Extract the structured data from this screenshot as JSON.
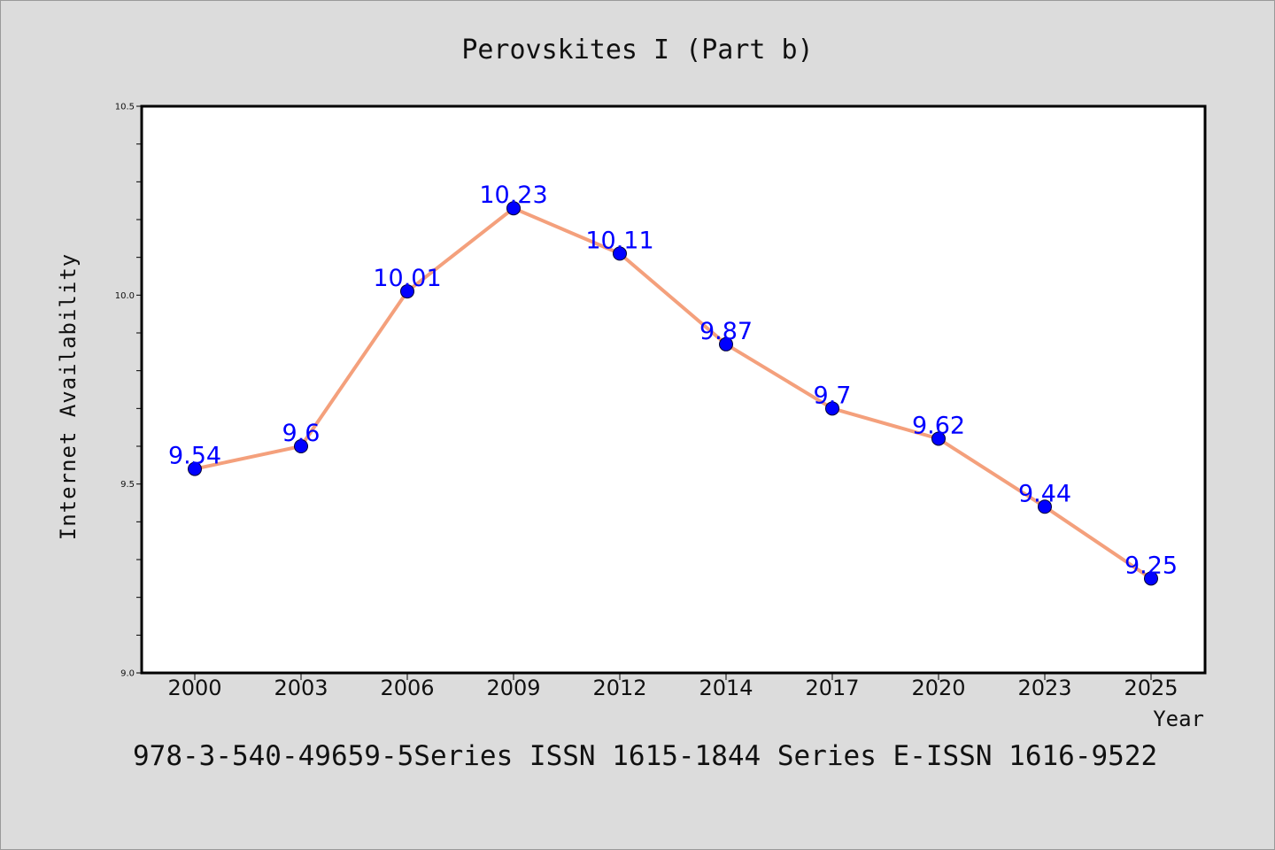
{
  "chart_data": {
    "type": "line",
    "title": "Perovskites I (Part b)",
    "xlabel": "Year",
    "ylabel": "Internet Availability",
    "categories": [
      "2000",
      "2003",
      "2006",
      "2009",
      "2012",
      "2014",
      "2017",
      "2020",
      "2023",
      "2025"
    ],
    "series": [
      {
        "values": [
          9.54,
          9.6,
          10.01,
          10.23,
          10.11,
          9.87,
          9.7,
          9.62,
          9.44,
          9.25
        ]
      }
    ],
    "data_labels": [
      "9.54",
      "9.6",
      "10.01",
      "10.23",
      "10.11",
      "9.87",
      "9.7",
      "9.62",
      "9.44",
      "9.25"
    ],
    "ylim": [
      9.0,
      10.5
    ],
    "yticks": [
      "9.0",
      "9.5",
      "10.0",
      "10.5"
    ],
    "y_minor_step": 0.1,
    "grid": false,
    "legend": "none",
    "colors": {
      "line": "#f4a07c",
      "marker": "#0000ff",
      "marker_edge": "#000033",
      "data_label": "#0000ff",
      "plot_background": "#ffffff",
      "figure_background": "#dcdcdc"
    }
  },
  "footnote": "978-3-540-49659-5Series ISSN 1615-1844 Series E-ISSN 1616-9522"
}
